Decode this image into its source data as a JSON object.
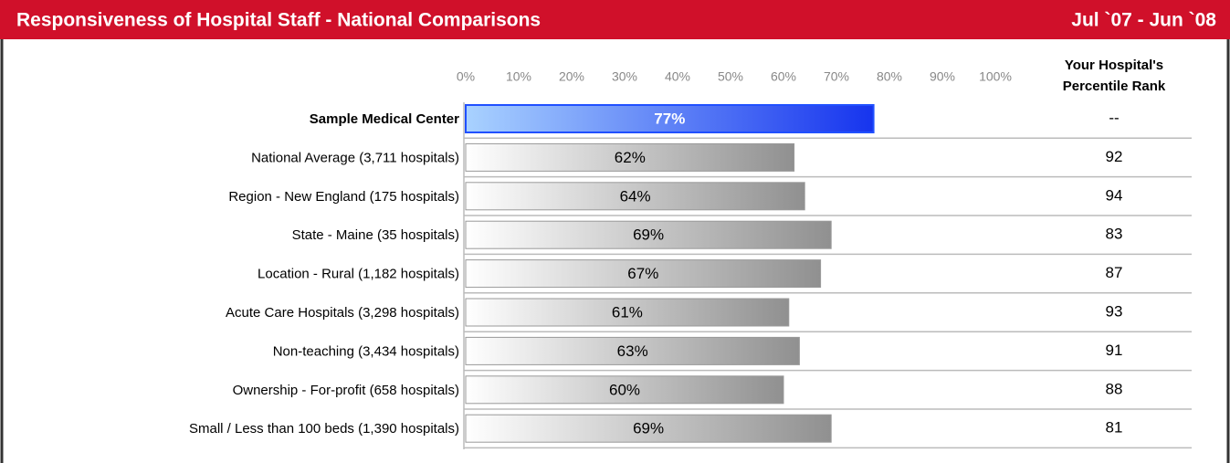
{
  "chart_data": {
    "type": "bar",
    "title": "Responsiveness of Hospital Staff - National Comparisons",
    "date_range": "Jul `07 - Jun `08",
    "categories": [
      "Sample Medical Center",
      "National Average (3,711 hospitals)",
      "Region - New England (175 hospitals)",
      "State - Maine (35 hospitals)",
      "Location - Rural (1,182 hospitals)",
      "Acute Care Hospitals (3,298 hospitals)",
      "Non-teaching (3,434 hospitals)",
      "Ownership - For-profit (658 hospitals)",
      "Small / Less than 100 beds (1,390 hospitals)"
    ],
    "values": [
      77,
      62,
      64,
      69,
      67,
      61,
      63,
      60,
      69
    ],
    "value_labels": [
      "77%",
      "62%",
      "64%",
      "69%",
      "67%",
      "61%",
      "63%",
      "60%",
      "69%"
    ],
    "xlim": [
      0,
      100
    ],
    "xticks": [
      {
        "value": 0,
        "label": "0%"
      },
      {
        "value": 10,
        "label": "10%"
      },
      {
        "value": 20,
        "label": "20%"
      },
      {
        "value": 30,
        "label": "30%"
      },
      {
        "value": 40,
        "label": "40%"
      },
      {
        "value": 50,
        "label": "50%"
      },
      {
        "value": 60,
        "label": "60%"
      },
      {
        "value": 70,
        "label": "70%"
      },
      {
        "value": 80,
        "label": "80%"
      },
      {
        "value": 90,
        "label": "90%"
      },
      {
        "value": 100,
        "label": "100%"
      }
    ],
    "rank_header": [
      "Your Hospital's",
      "Percentile Rank"
    ],
    "ranks": [
      "--",
      92,
      94,
      83,
      87,
      93,
      91,
      88,
      81
    ]
  }
}
